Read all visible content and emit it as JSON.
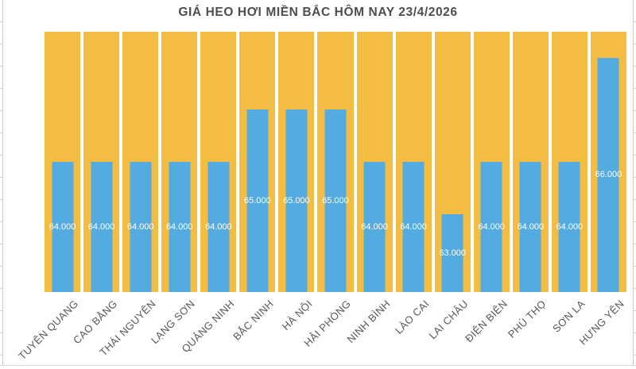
{
  "page": {
    "background": "#FFFFFF"
  },
  "chart_data": {
    "type": "bar",
    "title": "GIÁ HEO HƠI MIỀN BẮC HÔM NAY 23/4/2026",
    "categories": [
      "TUYÊN QUANG",
      "CAO BẰNG",
      "THÁI NGUYÊN",
      "LẠNG SƠN",
      "QUẢNG NINH",
      "BẮC NINH",
      "HÀ NỘI",
      "HẢI PHÒNG",
      "NINH BÌNH",
      "LÀO CAI",
      "LAI CHÂU",
      "ĐIỆN BIÊN",
      "PHÚ THỌ",
      "SƠN LA",
      "HƯNG YÊN"
    ],
    "values": [
      64000,
      64000,
      64000,
      64000,
      64000,
      65000,
      65000,
      65000,
      64000,
      64000,
      63000,
      64000,
      64000,
      64000,
      66000
    ],
    "value_labels": [
      "64.000",
      "64.000",
      "64.000",
      "64.000",
      "64.000",
      "65.000",
      "65.000",
      "65.000",
      "64.000",
      "64.000",
      "63.000",
      "64.000",
      "64.000",
      "64.000",
      "66.000"
    ],
    "xlabel": "",
    "ylabel": "",
    "ylim": [
      61500,
      66500
    ],
    "grid": false,
    "legend": "none",
    "bar_label_position": "center",
    "x_tick_rotation": 45,
    "colors": {
      "plot_background": "#F3BD43",
      "bar": "#54ABE0",
      "bar_label": "#FFFFFF",
      "title_text": "#4D4D4D",
      "axis_label_text": "#595959",
      "canvas_background": "#FFFFFF",
      "worksheet_gridline": "#D6D6D6"
    }
  }
}
